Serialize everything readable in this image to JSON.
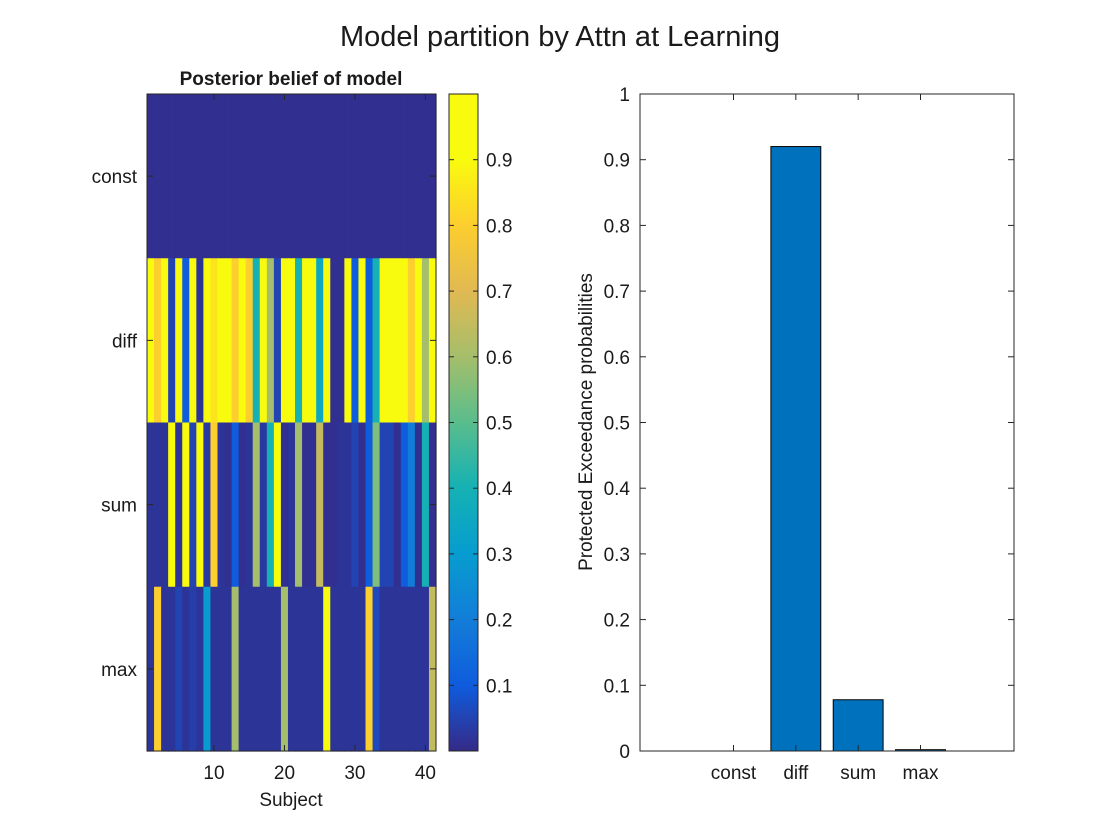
{
  "figure": {
    "title": "Model partition by Attn at Learning"
  },
  "chart_data": [
    {
      "type": "heatmap",
      "title": "Posterior belief of model",
      "xlabel": "Subject",
      "ylabel": "",
      "rows": [
        "const",
        "diff",
        "sum",
        "max"
      ],
      "x_ticks": [
        10,
        20,
        30,
        40
      ],
      "n_subjects": 41,
      "xlim": [
        0.5,
        41.5
      ],
      "colorbar": {
        "ticks": [
          0.1,
          0.2,
          0.3,
          0.4,
          0.5,
          0.6,
          0.7,
          0.8,
          0.9
        ],
        "clim": [
          0,
          1
        ],
        "colormap": "parula"
      },
      "values": [
        [
          0.01,
          0.01,
          0.01,
          0.01,
          0.01,
          0.01,
          0.01,
          0.01,
          0.01,
          0.01,
          0.01,
          0.01,
          0.01,
          0.01,
          0.01,
          0.01,
          0.01,
          0.01,
          0.01,
          0.01,
          0.01,
          0.01,
          0.01,
          0.01,
          0.01,
          0.01,
          0.01,
          0.01,
          0.01,
          0.01,
          0.01,
          0.01,
          0.01,
          0.01,
          0.01,
          0.01,
          0.01,
          0.01,
          0.01,
          0.01,
          0.01
        ],
        [
          0.97,
          0.8,
          0.99,
          0.05,
          0.99,
          0.1,
          0.92,
          0.02,
          0.99,
          0.85,
          0.99,
          0.99,
          0.8,
          0.99,
          0.8,
          0.4,
          0.97,
          0.6,
          0.05,
          0.99,
          0.98,
          0.4,
          0.99,
          0.99,
          0.35,
          0.99,
          0.01,
          0.01,
          0.98,
          0.1,
          0.99,
          0.1,
          0.4,
          0.95,
          0.99,
          0.99,
          0.9,
          0.8,
          0.99,
          0.6,
          0.99
        ],
        [
          0.02,
          0.02,
          0.02,
          0.95,
          0.02,
          0.9,
          0.05,
          0.99,
          0.03,
          0.8,
          0.02,
          0.01,
          0.1,
          0.01,
          0.02,
          0.6,
          0.03,
          0.4,
          0.95,
          0.01,
          0.02,
          0.6,
          0.01,
          0.01,
          0.65,
          0.01,
          0.01,
          0.02,
          0.02,
          0.05,
          0.01,
          0.1,
          0.55,
          0.05,
          0.05,
          0.01,
          0.1,
          0.2,
          0.01,
          0.4,
          0.01
        ],
        [
          0.02,
          0.8,
          0.02,
          0.02,
          0.05,
          0.02,
          0.04,
          0.02,
          0.3,
          0.02,
          0.02,
          0.02,
          0.6,
          0.02,
          0.02,
          0.02,
          0.02,
          0.02,
          0.02,
          0.6,
          0.02,
          0.02,
          0.02,
          0.02,
          0.02,
          0.95,
          0.02,
          0.02,
          0.02,
          0.02,
          0.02,
          0.8,
          0.06,
          0.02,
          0.02,
          0.02,
          0.02,
          0.02,
          0.02,
          0.02,
          0.65
        ]
      ]
    },
    {
      "type": "bar",
      "title": "",
      "xlabel": "",
      "ylabel": "Protected Exceedance probabilities",
      "categories": [
        "const",
        "diff",
        "sum",
        "max"
      ],
      "values": [
        0.0,
        0.92,
        0.078,
        0.002
      ],
      "ylim": [
        0,
        1
      ],
      "yticks": [
        0,
        0.1,
        0.2,
        0.3,
        0.4,
        0.5,
        0.6,
        0.7,
        0.8,
        0.9,
        1
      ],
      "bar_color": "#0072BD"
    }
  ]
}
